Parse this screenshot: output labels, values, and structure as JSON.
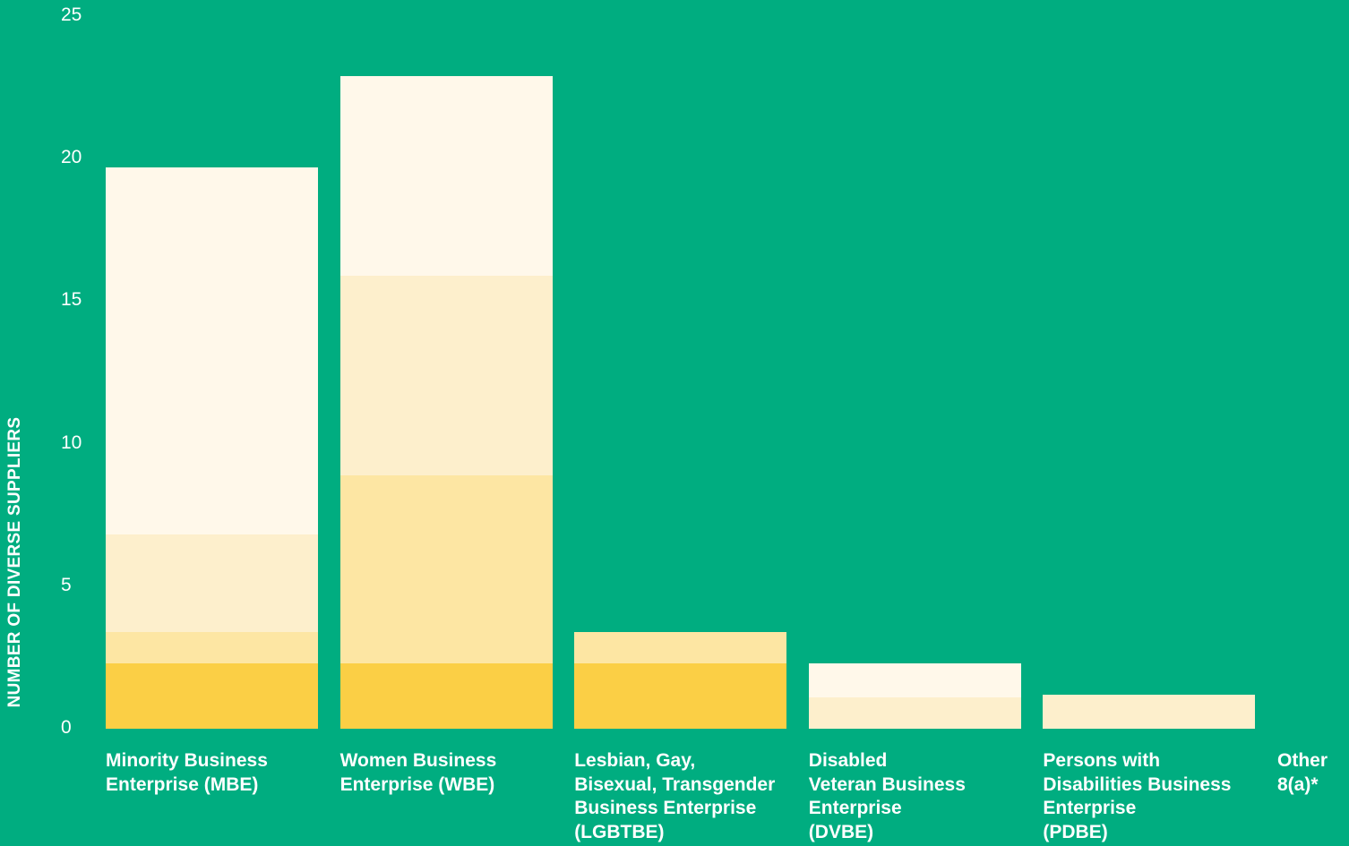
{
  "chart_data": {
    "type": "bar",
    "stacked": true,
    "ylabel": "NUMBER OF DIVERSE SUPPLIERS",
    "ylim": [
      0,
      25
    ],
    "yticks": [
      "0",
      "5",
      "10",
      "15",
      "20",
      "25"
    ],
    "grid": false,
    "categories": [
      "Minority Business\nEnterprise (MBE)",
      "Women Business\nEnterprise (WBE)",
      "Lesbian, Gay,\nBisexual, Transgender\nBusiness Enterprise\n(LGBTBE)",
      "Disabled\nVeteran Business\nEnterprise\n(DVBE)",
      "Persons with\nDisabilities  Business\nEnterprise\n(PDBE)",
      "Other\n8(a)*"
    ],
    "series": [
      {
        "color": "#fbcf45",
        "values": [
          2.3,
          2.3,
          2.3,
          0,
          0,
          0
        ]
      },
      {
        "color": "#fde6a3",
        "values": [
          1.1,
          6.6,
          1.1,
          0,
          0,
          0
        ]
      },
      {
        "color": "#fdefcc",
        "values": [
          3.4,
          7.0,
          0,
          1.1,
          1.2,
          0
        ]
      },
      {
        "color": "#fff8ea",
        "values": [
          12.9,
          7.0,
          0,
          1.2,
          0,
          0
        ]
      }
    ]
  },
  "colors": {
    "background": "#00ad80",
    "text": "#ffffff"
  }
}
